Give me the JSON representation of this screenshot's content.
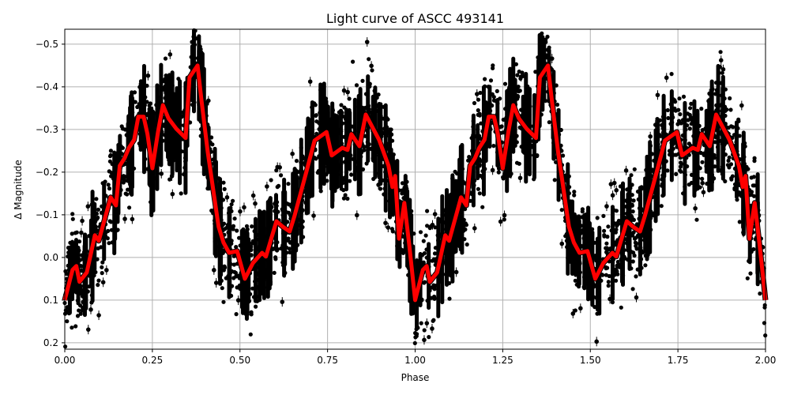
{
  "chart_data": {
    "type": "scatter",
    "title": "Light curve of ASCC 493141",
    "xlabel": "Phase",
    "ylabel": "Δ Magnitude",
    "xlim": [
      0.0,
      2.0
    ],
    "ylim": [
      0.215,
      -0.535
    ],
    "y_inverted": true,
    "grid": true,
    "legend": null,
    "x_ticks": [
      "0.00",
      "0.25",
      "0.50",
      "0.75",
      "1.00",
      "1.25",
      "1.50",
      "1.75",
      "2.00"
    ],
    "x_tick_values": [
      0,
      0.25,
      0.5,
      0.75,
      1.0,
      1.25,
      1.5,
      1.75,
      2.0
    ],
    "y_ticks": [
      "−0.5",
      "−0.4",
      "−0.3",
      "−0.2",
      "−0.1",
      "0.0",
      "0.1",
      "0.2"
    ],
    "y_tick_values": [
      -0.5,
      -0.4,
      -0.3,
      -0.2,
      -0.1,
      0.0,
      0.1,
      0.2
    ],
    "series": [
      {
        "name": "observations",
        "kind": "scatter_with_errorbars",
        "color": "#000000",
        "description": "Dense black points (phase-folded photometry, repeated over two cycles), scatter roughly ±0.1 mag around the binned curve"
      },
      {
        "name": "binned light curve",
        "kind": "line",
        "color": "#ff0000",
        "line_width": 5,
        "period_phase": [
          0.0,
          0.022,
          0.033,
          0.042,
          0.063,
          0.086,
          0.097,
          0.108,
          0.131,
          0.146,
          0.157,
          0.171,
          0.183,
          0.198,
          0.21,
          0.225,
          0.236,
          0.25,
          0.266,
          0.28,
          0.296,
          0.318,
          0.345,
          0.356,
          0.379,
          0.39,
          0.408,
          0.439,
          0.453,
          0.469,
          0.492,
          0.514,
          0.537,
          0.563,
          0.574,
          0.604,
          0.622,
          0.642,
          0.656,
          0.69,
          0.713,
          0.747,
          0.762,
          0.792,
          0.807,
          0.818,
          0.841,
          0.859,
          0.897,
          0.924,
          0.935,
          0.943,
          0.954,
          0.969,
          0.983,
          1.0
        ],
        "period_mag": [
          0.1,
          0.029,
          0.02,
          0.057,
          0.035,
          -0.052,
          -0.039,
          -0.072,
          -0.141,
          -0.122,
          -0.215,
          -0.233,
          -0.257,
          -0.276,
          -0.33,
          -0.33,
          -0.289,
          -0.209,
          -0.294,
          -0.357,
          -0.326,
          -0.302,
          -0.28,
          -0.422,
          -0.45,
          -0.369,
          -0.248,
          -0.072,
          -0.035,
          -0.011,
          -0.015,
          0.05,
          0.013,
          -0.011,
          -0.002,
          -0.085,
          -0.072,
          -0.061,
          -0.098,
          -0.202,
          -0.274,
          -0.294,
          -0.239,
          -0.257,
          -0.252,
          -0.289,
          -0.261,
          -0.335,
          -0.276,
          -0.215,
          -0.165,
          -0.191,
          -0.044,
          -0.128,
          -0.03,
          0.1
        ],
        "repeats": 2
      }
    ]
  }
}
